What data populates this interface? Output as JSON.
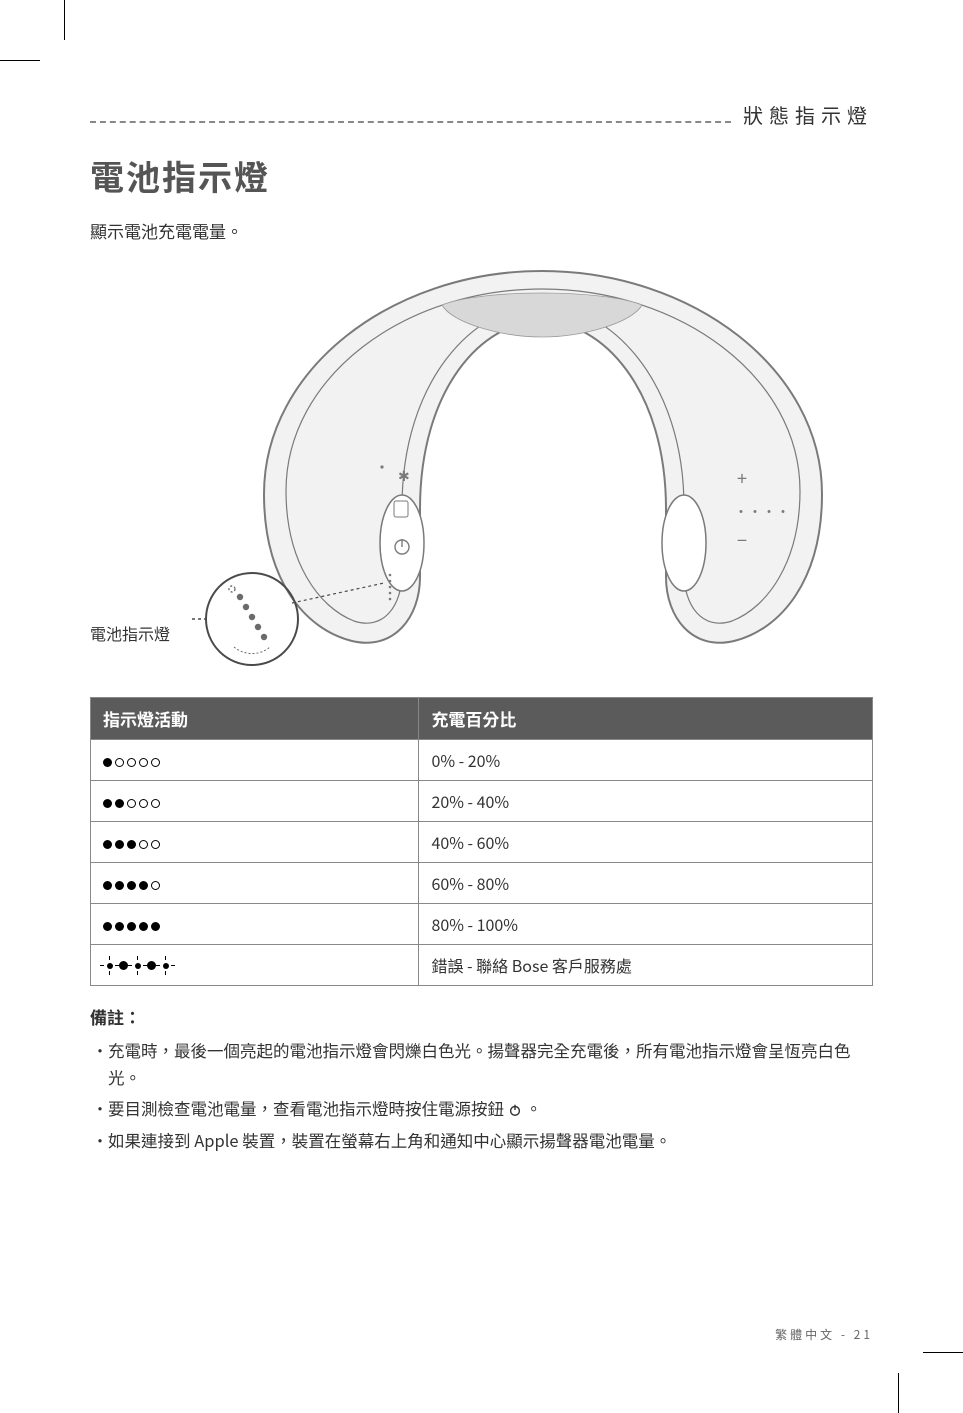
{
  "header": {
    "category": "狀態指示燈"
  },
  "section": {
    "title": "電池指示燈",
    "intro": "顯示電池充電電量。",
    "diagram_caption": "電池指示燈"
  },
  "diagram": {
    "stroke": "#7a7a7a",
    "fill_light": "#f2f2f2",
    "fill_dark": "#d8d8d8",
    "callout_stroke": "#4a4a4a"
  },
  "table": {
    "headers": {
      "activity": "指示燈活動",
      "percent": "充電百分比"
    },
    "rows": [
      {
        "pattern": [
          1,
          0,
          0,
          0,
          0
        ],
        "blink": false,
        "percent": "0% - 20%"
      },
      {
        "pattern": [
          1,
          1,
          0,
          0,
          0
        ],
        "blink": false,
        "percent": "20% - 40%"
      },
      {
        "pattern": [
          1,
          1,
          1,
          0,
          0
        ],
        "blink": false,
        "percent": "40% - 60%"
      },
      {
        "pattern": [
          1,
          1,
          1,
          1,
          0
        ],
        "blink": false,
        "percent": "60% - 80%"
      },
      {
        "pattern": [
          1,
          1,
          1,
          1,
          1
        ],
        "blink": false,
        "percent": "80% - 100%"
      },
      {
        "pattern": [
          2,
          1,
          2,
          1,
          2
        ],
        "blink": true,
        "percent": "錯誤 - 聯絡 Bose 客戶服務處"
      }
    ]
  },
  "notes": {
    "heading": "備註：",
    "items": [
      "充電時，最後一個亮起的電池指示燈會閃爍白色光。揚聲器完全充電後，所有電池指示燈會呈恆亮白色光。",
      "要目測檢查電池電量，查看電池指示燈時按住電源按鈕 ⏻ 。",
      "如果連接到 Apple 裝置，裝置在螢幕右上角和通知中心顯示揚聲器電池電量。"
    ]
  },
  "footer": {
    "lang": "繁體中文",
    "sep": " - ",
    "page": "21"
  }
}
